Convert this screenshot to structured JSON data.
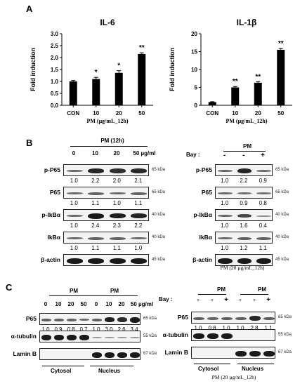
{
  "panelA": {
    "label": "A",
    "xaxis_label": "PM (µg/mL_12h)",
    "charts": [
      {
        "type": "bar",
        "title": "IL-6",
        "ylabel": "Fold induction",
        "categories": [
          "CON",
          "10",
          "20",
          "50"
        ],
        "values": [
          1.0,
          1.1,
          1.36,
          2.15
        ],
        "errors": [
          0.04,
          0.07,
          0.09,
          0.05
        ],
        "significance": [
          "",
          "*",
          "*",
          "**"
        ],
        "ylim": [
          0,
          3.0
        ],
        "yticks": [
          "0.0",
          "0.5",
          "1.0",
          "1.5",
          "2.0",
          "2.5",
          "3.0"
        ],
        "ytick_values": [
          0,
          0.5,
          1,
          1.5,
          2,
          2.5,
          3
        ]
      },
      {
        "type": "bar",
        "title": "IL-1β",
        "ylabel": "Fold induction",
        "categories": [
          "CON",
          "10",
          "20",
          "50"
        ],
        "values": [
          0.9,
          5.0,
          6.3,
          15.5
        ],
        "errors": [
          0.1,
          0.25,
          0.3,
          0.35
        ],
        "significance": [
          "",
          "**",
          "**",
          "**"
        ],
        "ylim": [
          0,
          20
        ],
        "yticks": [
          "0",
          "5",
          "10",
          "15",
          "20"
        ],
        "ytick_values": [
          0,
          5,
          10,
          15,
          20
        ]
      }
    ]
  },
  "chart_data": [
    {
      "type": "bar",
      "title": "IL-6",
      "ylabel": "Fold induction",
      "xlabel": "PM (µg/mL_12h)",
      "categories": [
        "CON",
        "10",
        "20",
        "50"
      ],
      "values": [
        1.0,
        1.1,
        1.36,
        2.15
      ],
      "ylim": [
        0,
        3.0
      ]
    },
    {
      "type": "bar",
      "title": "IL-1β",
      "ylabel": "Fold induction",
      "xlabel": "PM (µg/mL_12h)",
      "categories": [
        "CON",
        "10",
        "20",
        "50"
      ],
      "values": [
        0.9,
        5.0,
        6.3,
        15.5
      ],
      "ylim": [
        0,
        20
      ]
    }
  ],
  "panelB": {
    "label": "B",
    "left": {
      "title": "PM (12h)",
      "doses": [
        "0",
        "10",
        "20",
        "50 µg/ml"
      ],
      "rows": [
        {
          "name": "p-P65",
          "kda": "65 kDa",
          "quant": [
            "1.0",
            "2.2",
            "2.0",
            "2.1"
          ]
        },
        {
          "name": "P65",
          "kda": "65 kDa",
          "quant": [
            "1.0",
            "1.1",
            "1.0",
            "1.1"
          ]
        },
        {
          "name": "p-IkBα",
          "kda": "40 kDa",
          "quant": [
            "1.0",
            "2.4",
            "2.3",
            "2.2"
          ]
        },
        {
          "name": "IkBα",
          "kda": "40 kDa",
          "quant": [
            "1.0",
            "1.1",
            "1.1",
            "1.0"
          ]
        },
        {
          "name": "β-actin",
          "kda": "45 kDa",
          "quant": []
        }
      ]
    },
    "right": {
      "pm_label": "PM",
      "bay_label": "Bay :",
      "bay_signs": [
        "-",
        "-",
        "+"
      ],
      "footer": "PM (20 µg/mL_12h)",
      "rows": [
        {
          "name": "p-P65",
          "kda": "65 kDa",
          "quant": [
            "1.0",
            "2.2",
            "0.9"
          ]
        },
        {
          "name": "P65",
          "kda": "65 kDa",
          "quant": [
            "1.0",
            "0.9",
            "0.8"
          ]
        },
        {
          "name": "p-IkBα",
          "kda": "40 kDa",
          "quant": [
            "1.0",
            "1.6",
            "0.4"
          ]
        },
        {
          "name": "IkBα",
          "kda": "40 kDa",
          "quant": [
            "1.0",
            "1.2",
            "1.1"
          ]
        },
        {
          "name": "β-actin",
          "kda": "45 kDa",
          "quant": []
        }
      ]
    }
  },
  "panelC": {
    "label": "C",
    "left": {
      "pm1": "PM",
      "pm2": "PM",
      "doses": [
        "0",
        "10",
        "20",
        "50",
        "0",
        "10",
        "20",
        "50 µg/ml"
      ],
      "rows": [
        {
          "name": "P65",
          "kda": "65 kDa",
          "quant": [
            "1.0",
            "0.9",
            "0.8",
            "0.7",
            "1.0",
            "3.0",
            "2.6",
            "3.4"
          ]
        },
        {
          "name": "α-tubulin",
          "kda": "55 kDa",
          "quant": []
        },
        {
          "name": "Lamin B",
          "kda": "67 kDa",
          "quant": []
        }
      ],
      "fractions": [
        "Cytosol",
        "Nucleus"
      ]
    },
    "right": {
      "pm1": "PM",
      "pm2": "PM",
      "bay_label": "Bay :",
      "bay_signs": [
        "-",
        "-",
        "+",
        "-",
        "-",
        "+"
      ],
      "rows": [
        {
          "name": "P65",
          "kda": "65 kDa",
          "quant": [
            "1.0",
            "0.8",
            "1.0",
            "1.0",
            "2.8",
            "1.1"
          ]
        },
        {
          "name": "α-tubulin",
          "kda": "55 kDa",
          "quant": []
        },
        {
          "name": "Lamin B",
          "kda": "67 kDa",
          "quant": []
        }
      ],
      "fractions": [
        "Cytosol",
        "Nucleus"
      ],
      "footer": "PM (20 µg/mL_12h)"
    }
  }
}
